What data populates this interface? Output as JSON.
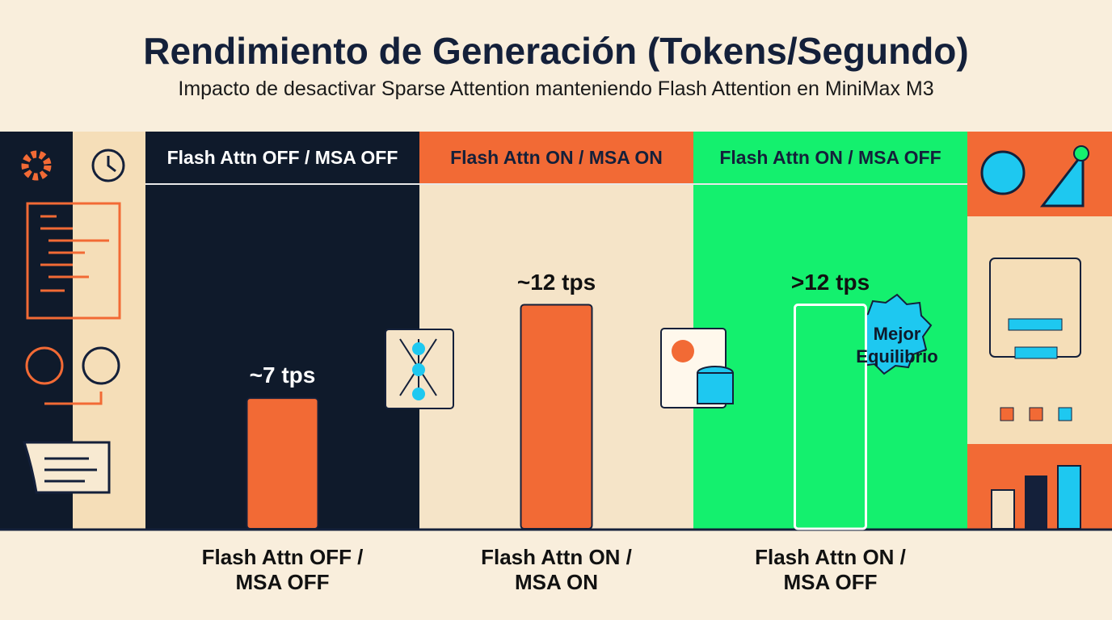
{
  "chart_data": {
    "type": "bar",
    "title": "Rendimiento de Generación (Tokens/Segundo)",
    "subtitle": "Impacto de desactivar Sparse Attention manteniendo Flash Attention en MiniMax M3",
    "categories": [
      "Flash Attn OFF / MSA OFF",
      "Flash Attn ON / MSA ON",
      "Flash Attn ON / MSA OFF"
    ],
    "values": [
      7,
      12,
      12
    ],
    "value_labels": [
      "~7 tps",
      "~12 tps",
      ">12 tps"
    ],
    "colors": [
      "#f26a35",
      "#f26a35",
      "#14f06e"
    ],
    "ylim": [
      0,
      16
    ],
    "annotation": "Mejor Equilibrio"
  }
}
